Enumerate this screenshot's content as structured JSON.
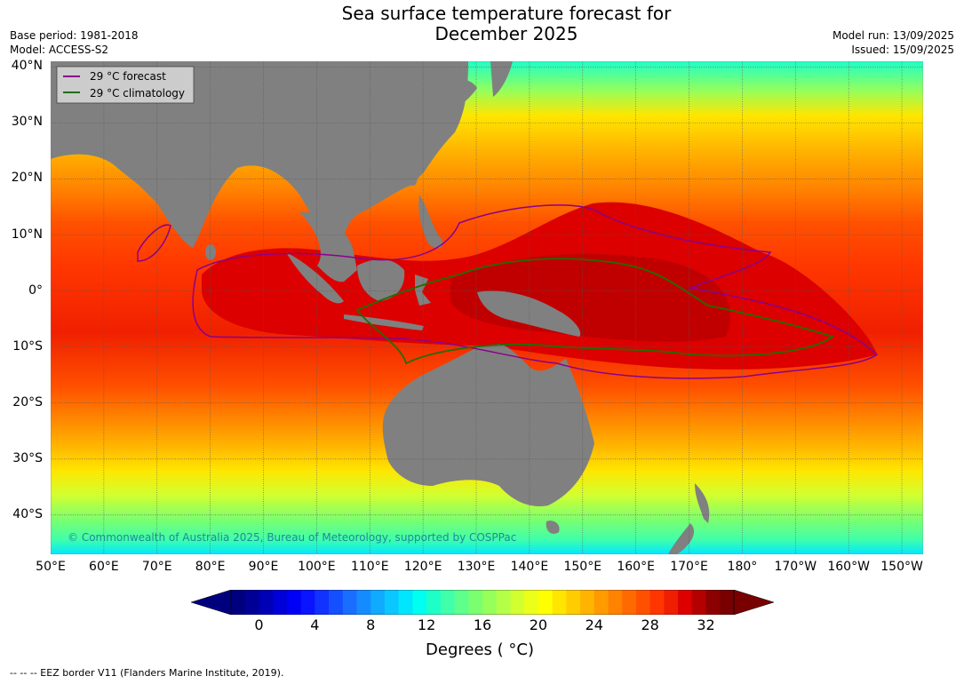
{
  "header": {
    "title_line1": "Sea surface temperature forecast for",
    "title_line2": "December 2025",
    "base_period": "Base period: 1981-2018",
    "model": "Model: ACCESS-S2",
    "model_run": "Model run: 13/09/2025",
    "issued": "Issued: 15/09/2025"
  },
  "legend": {
    "items": [
      {
        "label": "29 °C  forecast",
        "color": "#8b008b"
      },
      {
        "label": "29 °C  climatology",
        "color": "#1f6e00"
      }
    ]
  },
  "copyright": "© Commonwealth of Australia 2025, Bureau of Meteorology, supported by COSPPac",
  "axes": {
    "lat_labels": [
      "40°N",
      "30°N",
      "20°N",
      "10°N",
      "0°",
      "10°S",
      "20°S",
      "30°S",
      "40°S"
    ],
    "lat_values": [
      40,
      30,
      20,
      10,
      0,
      -10,
      -20,
      -30,
      -40
    ],
    "lon_labels": [
      "50°E",
      "60°E",
      "70°E",
      "80°E",
      "90°E",
      "100°E",
      "110°E",
      "120°E",
      "130°E",
      "140°E",
      "150°E",
      "160°E",
      "170°E",
      "180°",
      "170°W",
      "160°W",
      "150°W"
    ],
    "lon_values": [
      50,
      60,
      70,
      80,
      90,
      100,
      110,
      120,
      130,
      140,
      150,
      160,
      170,
      180,
      190,
      200,
      210
    ],
    "lat_range": [
      -47,
      41
    ],
    "lon_range": [
      50,
      214
    ]
  },
  "colorbar": {
    "ticks": [
      "0",
      "4",
      "8",
      "12",
      "16",
      "20",
      "24",
      "28",
      "32"
    ],
    "range": [
      -2,
      34
    ],
    "label": "Degrees ( °C)",
    "colors": [
      "#00007f",
      "#000096",
      "#0000b4",
      "#0000d8",
      "#0000f6",
      "#0a14ff",
      "#1232ff",
      "#1450ff",
      "#1a6eff",
      "#148cff",
      "#10aaff",
      "#0ac8ff",
      "#00e6ff",
      "#00fff0",
      "#1effc8",
      "#40ffaa",
      "#5eff8c",
      "#7aff70",
      "#96ff5a",
      "#b4ff48",
      "#d2ff30",
      "#ecff18",
      "#ffff00",
      "#ffe600",
      "#ffcc00",
      "#ffb400",
      "#ff9a00",
      "#ff8200",
      "#ff6a00",
      "#ff5000",
      "#ff3600",
      "#f01e00",
      "#dc0000",
      "#b40000",
      "#8b0000",
      "#780000"
    ]
  },
  "footnote": "--  --  -- EEZ border V11 (Flanders Marine Institute, 2019).",
  "icons": {
    "colorbar_low_arrow": "triangle-left",
    "colorbar_high_arrow": "triangle-right"
  }
}
